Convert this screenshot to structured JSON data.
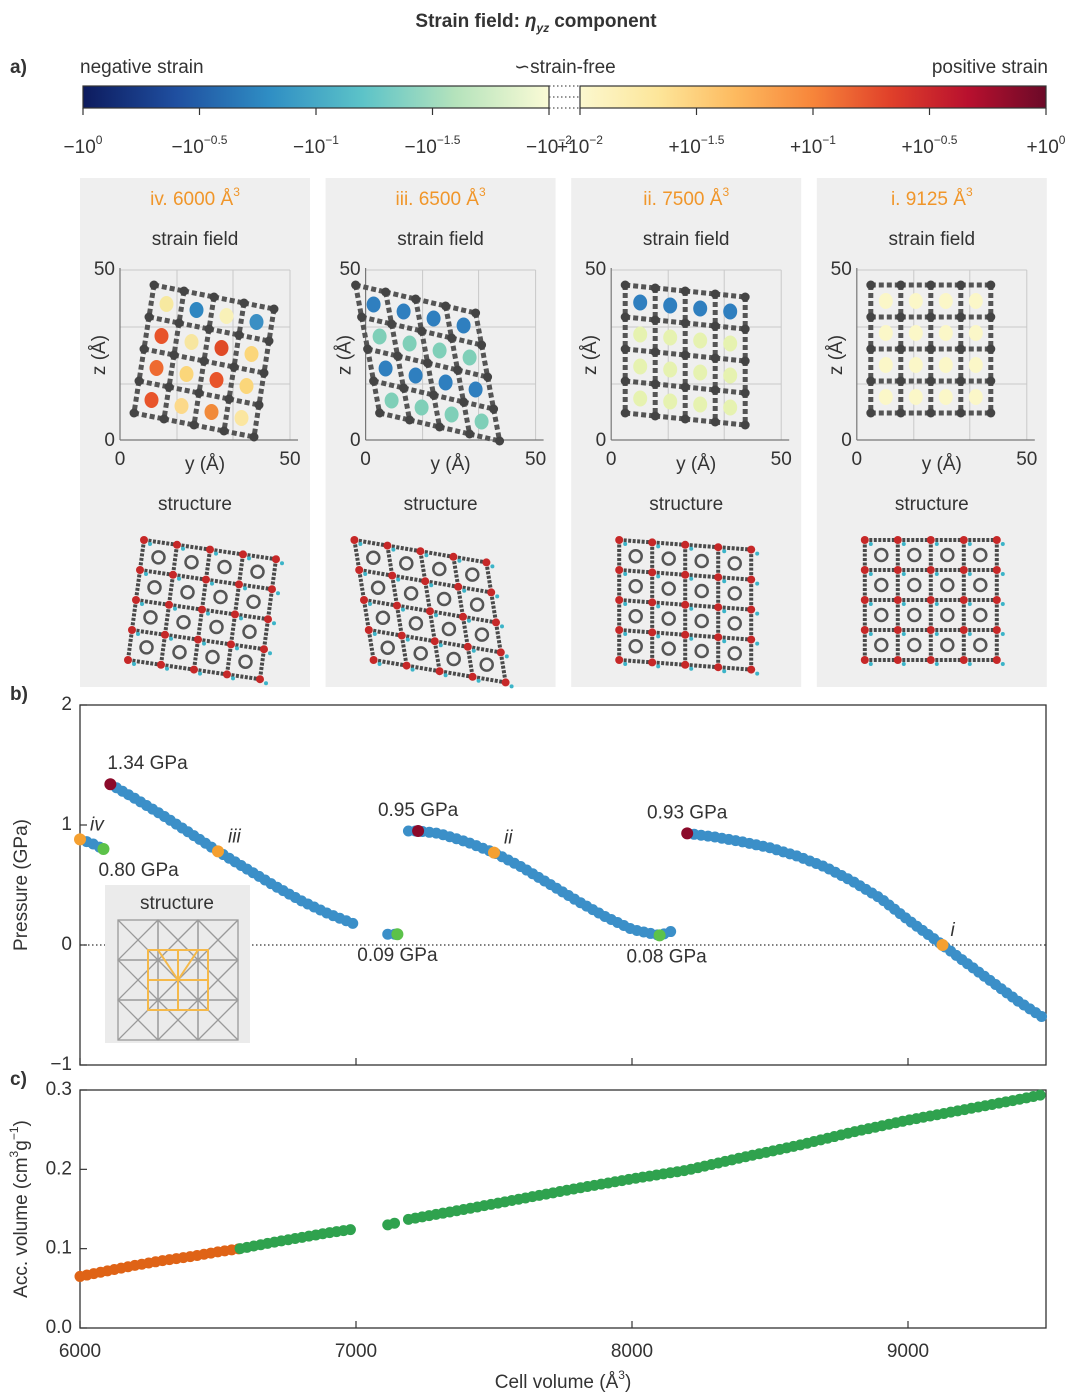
{
  "title": {
    "text": "Strain field:",
    "symbol": "η",
    "subscript": "yz",
    "text_end": "component"
  },
  "colorbar": {
    "type": "colorbar",
    "panel_label": "a)",
    "left_label": "negative strain",
    "center_label": "∽strain-free",
    "right_label": "positive strain",
    "log": true,
    "xlim": [
      -1,
      1
    ],
    "ticks": [
      {
        "value": -1,
        "label": "−10",
        "exponent": "0"
      },
      {
        "value": -0.31622776601683794,
        "label": "−10",
        "exponent": "−0.5"
      },
      {
        "value": -0.1,
        "label": "−10",
        "exponent": "−1"
      },
      {
        "value": -0.03162277660168379,
        "label": "−10",
        "exponent": "−1.5"
      },
      {
        "value": -0.01,
        "label": "−10",
        "exponent": "−2"
      },
      {
        "value": 0.01,
        "label": "+10",
        "exponent": "−2"
      },
      {
        "value": 0.03162277660168379,
        "label": "+10",
        "exponent": "−1.5"
      },
      {
        "value": 0.1,
        "label": "+10",
        "exponent": "−1"
      },
      {
        "value": 0.31622776601683794,
        "label": "+10",
        "exponent": "−0.5"
      },
      {
        "value": 1,
        "label": "+10",
        "exponent": "0"
      }
    ],
    "negative_colors": [
      "#0d1b5e",
      "#1f4fa0",
      "#2f8ec4",
      "#5cc3c8",
      "#b5e3bc",
      "#fbfbd6"
    ],
    "positive_colors": [
      "#fbf8cf",
      "#fde69a",
      "#fdba5f",
      "#f7853a",
      "#e0402a",
      "#b8102e",
      "#6b0a28"
    ]
  },
  "panels": [
    {
      "title": "iv. 6000 Å",
      "title_sup": "3",
      "plot_title": "strain field",
      "zlabel": "z (Å)",
      "ylabel": "y (Å)",
      "zticks": [
        0,
        50
      ],
      "yticks": [
        0,
        50
      ],
      "structure_title": "structure"
    },
    {
      "title": "iii. 6500 Å",
      "title_sup": "3",
      "plot_title": "strain field",
      "zlabel": "z (Å)",
      "ylabel": "y (Å)",
      "zticks": [
        0,
        50
      ],
      "yticks": [
        0,
        50
      ],
      "structure_title": "structure"
    },
    {
      "title": "ii. 7500 Å",
      "title_sup": "3",
      "plot_title": "strain field",
      "zlabel": "z (Å)",
      "ylabel": "y (Å)",
      "zticks": [
        0,
        50
      ],
      "yticks": [
        0,
        50
      ],
      "structure_title": "structure"
    },
    {
      "title": "i. 9125 Å",
      "title_sup": "3",
      "plot_title": "strain field",
      "zlabel": "z (Å)",
      "ylabel": "y (Å)",
      "zticks": [
        0,
        50
      ],
      "yticks": [
        0,
        50
      ],
      "structure_title": "structure"
    }
  ],
  "chart_data": [
    {
      "type": "scatter",
      "panel_label": "b)",
      "ylabel": {
        "text": "Pressure (GPa)"
      },
      "xlim": [
        6000,
        9500
      ],
      "xticks": [
        6000,
        7000,
        8000,
        9000
      ],
      "ylim": [
        -1,
        2
      ],
      "yticks": [
        {
          "value": -1,
          "label": "−1"
        },
        0,
        1,
        2
      ],
      "zero_line": true,
      "inset_title": "structure",
      "series": [
        {
          "color": "#3b8fc8",
          "x": [
            6000,
            6040,
            6085,
            6100,
            6110,
            6200,
            6300,
            6400,
            6500,
            6600,
            6700,
            6800,
            6900,
            7000,
            7050,
            7115,
            7150,
            7170,
            7190,
            7225,
            7300,
            7400,
            7500,
            7600,
            7700,
            7800,
            7900,
            8000,
            8100,
            8150,
            8180,
            8200,
            8300,
            8400,
            8500,
            8600,
            8700,
            8800,
            8900,
            9000,
            9125,
            9200,
            9300,
            9400,
            9500
          ],
          "values": [
            0.88,
            0.85,
            0.8,
            null,
            1.34,
            1.22,
            1.08,
            0.93,
            0.78,
            0.64,
            0.5,
            0.37,
            0.26,
            0.17,
            null,
            0.09,
            0.09,
            null,
            0.95,
            0.95,
            0.93,
            0.86,
            0.77,
            0.65,
            0.51,
            0.37,
            0.24,
            0.13,
            0.08,
            0.12,
            null,
            0.93,
            0.9,
            0.86,
            0.81,
            0.74,
            0.65,
            0.53,
            0.39,
            0.21,
            0,
            -0.13,
            -0.3,
            -0.47,
            -0.62
          ]
        },
        {
          "color": "#8b0a2a",
          "x": [
            6110,
            7225,
            8200
          ],
          "values": [
            1.34,
            0.95,
            0.93
          ],
          "value_labels": [
            "1.34 GPa",
            "0.95 GPa",
            "0.93 GPa"
          ]
        },
        {
          "color": "#5cc24a",
          "x": [
            6085,
            7150,
            8100
          ],
          "values": [
            0.8,
            0.09,
            0.08
          ],
          "value_labels": [
            "0.80 GPa",
            "0.09 GPa",
            "0.08 GPa"
          ]
        },
        {
          "color": "#f5a030",
          "x": [
            6000,
            6500,
            7500,
            9125
          ],
          "values": [
            0.88,
            0.78,
            0.77,
            0
          ],
          "point_labels": [
            "iv",
            "iii",
            "ii",
            "i"
          ]
        }
      ]
    },
    {
      "type": "scatter",
      "panel_label": "c)",
      "ylabel": {
        "text": "Acc. volume (cm",
        "sup": "3",
        "mid": "g",
        "sup2": "−1",
        "end": ")"
      },
      "xlabel": {
        "text": "Cell volume (Å",
        "sup": "3",
        "end": ")"
      },
      "xlim": [
        6000,
        9500
      ],
      "xticks": [
        6000,
        7000,
        8000,
        9000
      ],
      "ylim": [
        0,
        0.3
      ],
      "yticks": [
        {
          "value": 0,
          "label": "0.0"
        },
        0.1,
        0.2,
        0.3
      ],
      "series": [
        {
          "color": "#df6316",
          "x": [
            6000,
            6100,
            6200,
            6300,
            6400,
            6500,
            6580
          ],
          "values": [
            0.065,
            0.072,
            0.079,
            0.085,
            0.09,
            0.096,
            0.1
          ]
        },
        {
          "color": "#2fa24e",
          "x": [
            6580,
            6700,
            6800,
            6900,
            7000,
            7050,
            7115,
            7150,
            7170,
            7190,
            7400,
            7600,
            7800,
            8000,
            8200,
            8400,
            8600,
            8800,
            9000,
            9200,
            9400,
            9500
          ],
          "values": [
            0.1,
            0.108,
            0.114,
            0.12,
            0.125,
            null,
            0.13,
            0.133,
            null,
            0.137,
            0.15,
            0.163,
            0.176,
            0.188,
            0.199,
            0.215,
            0.23,
            0.247,
            0.262,
            0.275,
            0.288,
            0.295
          ]
        }
      ]
    }
  ]
}
